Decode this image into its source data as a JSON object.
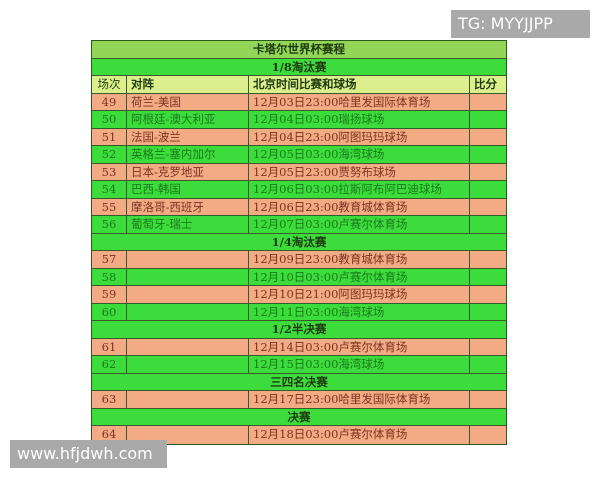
{
  "title": "卡塔尔世界杯赛程",
  "header": {
    "no": "场次",
    "match": "对阵",
    "time_venue": "北京时间比赛和球场",
    "score": "比分"
  },
  "sections": [
    {
      "label": "1/8淘汰赛",
      "matches": [
        {
          "no": "49",
          "match": "荷兰-美国",
          "time_venue": "12月03日23:00哈里发国际体育场",
          "score": "",
          "color": "salmon"
        },
        {
          "no": "50",
          "match": "阿根廷-澳大利亚",
          "time_venue": "12月04日03:00瑞扬球场",
          "score": "",
          "color": "green"
        },
        {
          "no": "51",
          "match": "法国-波兰",
          "time_venue": "12月04日23:00阿图玛玛球场",
          "score": "",
          "color": "salmon"
        },
        {
          "no": "52",
          "match": "英格兰-塞内加尔",
          "time_venue": "12月05日03:00海湾球场",
          "score": "",
          "color": "green"
        },
        {
          "no": "53",
          "match": "日本-克罗地亚",
          "time_venue": "12月05日23:00贾努布球场",
          "score": "",
          "color": "salmon"
        },
        {
          "no": "54",
          "match": "巴西-韩国",
          "time_venue": "12月06日03:00拉斯阿布阿巴迪球场",
          "score": "",
          "color": "green"
        },
        {
          "no": "55",
          "match": "摩洛哥-西班牙",
          "time_venue": "12月06日23:00教育城体育场",
          "score": "",
          "color": "salmon"
        },
        {
          "no": "56",
          "match": "葡萄牙-瑞士",
          "time_venue": "12月07日03:00卢赛尔体育场",
          "score": "",
          "color": "green"
        }
      ]
    },
    {
      "label": "1/4淘汰赛",
      "matches": [
        {
          "no": "57",
          "match": "",
          "time_venue": "12月09日23:00教育城体育场",
          "score": "",
          "color": "salmon"
        },
        {
          "no": "58",
          "match": "",
          "time_venue": "12月10日03:00卢赛尔体育场",
          "score": "",
          "color": "green"
        },
        {
          "no": "59",
          "match": "",
          "time_venue": "12月10日21:00阿图玛玛球场",
          "score": "",
          "color": "salmon"
        },
        {
          "no": "60",
          "match": "",
          "time_venue": "12月11日03:00海湾球场",
          "score": "",
          "color": "green"
        }
      ]
    },
    {
      "label": "1/2半决赛",
      "matches": [
        {
          "no": "61",
          "match": "",
          "time_venue": "12月14日03:00卢赛尔体育场",
          "score": "",
          "color": "salmon"
        },
        {
          "no": "62",
          "match": "",
          "time_venue": "12月15日03:00海湾球场",
          "score": "",
          "color": "green"
        }
      ]
    },
    {
      "label": "三四名决赛",
      "matches": [
        {
          "no": "63",
          "match": "",
          "time_venue": "12月17日23:00哈里发国际体育场",
          "score": "",
          "color": "salmon"
        }
      ]
    },
    {
      "label": "决赛",
      "matches": [
        {
          "no": "64",
          "match": "",
          "time_venue": "12月18日03:00卢赛尔体育场",
          "score": "",
          "color": "salmon"
        }
      ]
    }
  ],
  "watermarks": {
    "top_right": "TG: MYYJJPP",
    "bottom_left": "www.hfjdwh.com"
  }
}
